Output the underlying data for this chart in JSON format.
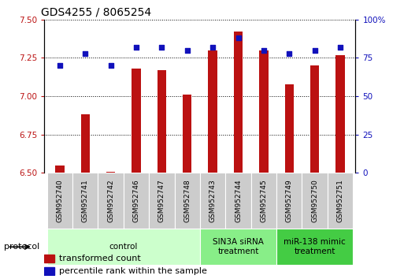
{
  "title": "GDS4255 / 8065254",
  "samples": [
    "GSM952740",
    "GSM952741",
    "GSM952742",
    "GSM952746",
    "GSM952747",
    "GSM952748",
    "GSM952743",
    "GSM952744",
    "GSM952745",
    "GSM952749",
    "GSM952750",
    "GSM952751"
  ],
  "transformed_count": [
    6.55,
    6.88,
    6.51,
    7.18,
    7.17,
    7.01,
    7.3,
    7.42,
    7.3,
    7.08,
    7.2,
    7.27
  ],
  "percentile_rank": [
    70,
    78,
    70,
    82,
    82,
    80,
    82,
    88,
    80,
    78,
    80,
    82
  ],
  "ylim_left": [
    6.5,
    7.5
  ],
  "ylim_right": [
    0,
    100
  ],
  "yticks_left": [
    6.5,
    6.75,
    7.0,
    7.25,
    7.5
  ],
  "yticks_right": [
    0,
    25,
    50,
    75,
    100
  ],
  "ytick_right_labels": [
    "0",
    "25",
    "50",
    "75",
    "100%"
  ],
  "bar_color": "#bb1111",
  "dot_color": "#1111bb",
  "bar_bottom": 6.5,
  "bar_width": 0.35,
  "groups": [
    {
      "label": "control",
      "start": 0,
      "end": 6,
      "color": "#ccffcc"
    },
    {
      "label": "SIN3A siRNA\ntreatment",
      "start": 6,
      "end": 9,
      "color": "#88ee88"
    },
    {
      "label": "miR-138 mimic\ntreatment",
      "start": 9,
      "end": 12,
      "color": "#44cc44"
    }
  ],
  "protocol_label": "protocol",
  "legend_bar_label": "transformed count",
  "legend_dot_label": "percentile rank within the sample",
  "title_fontsize": 10,
  "tick_fontsize": 7.5,
  "label_fontsize": 8,
  "legend_fontsize": 8
}
